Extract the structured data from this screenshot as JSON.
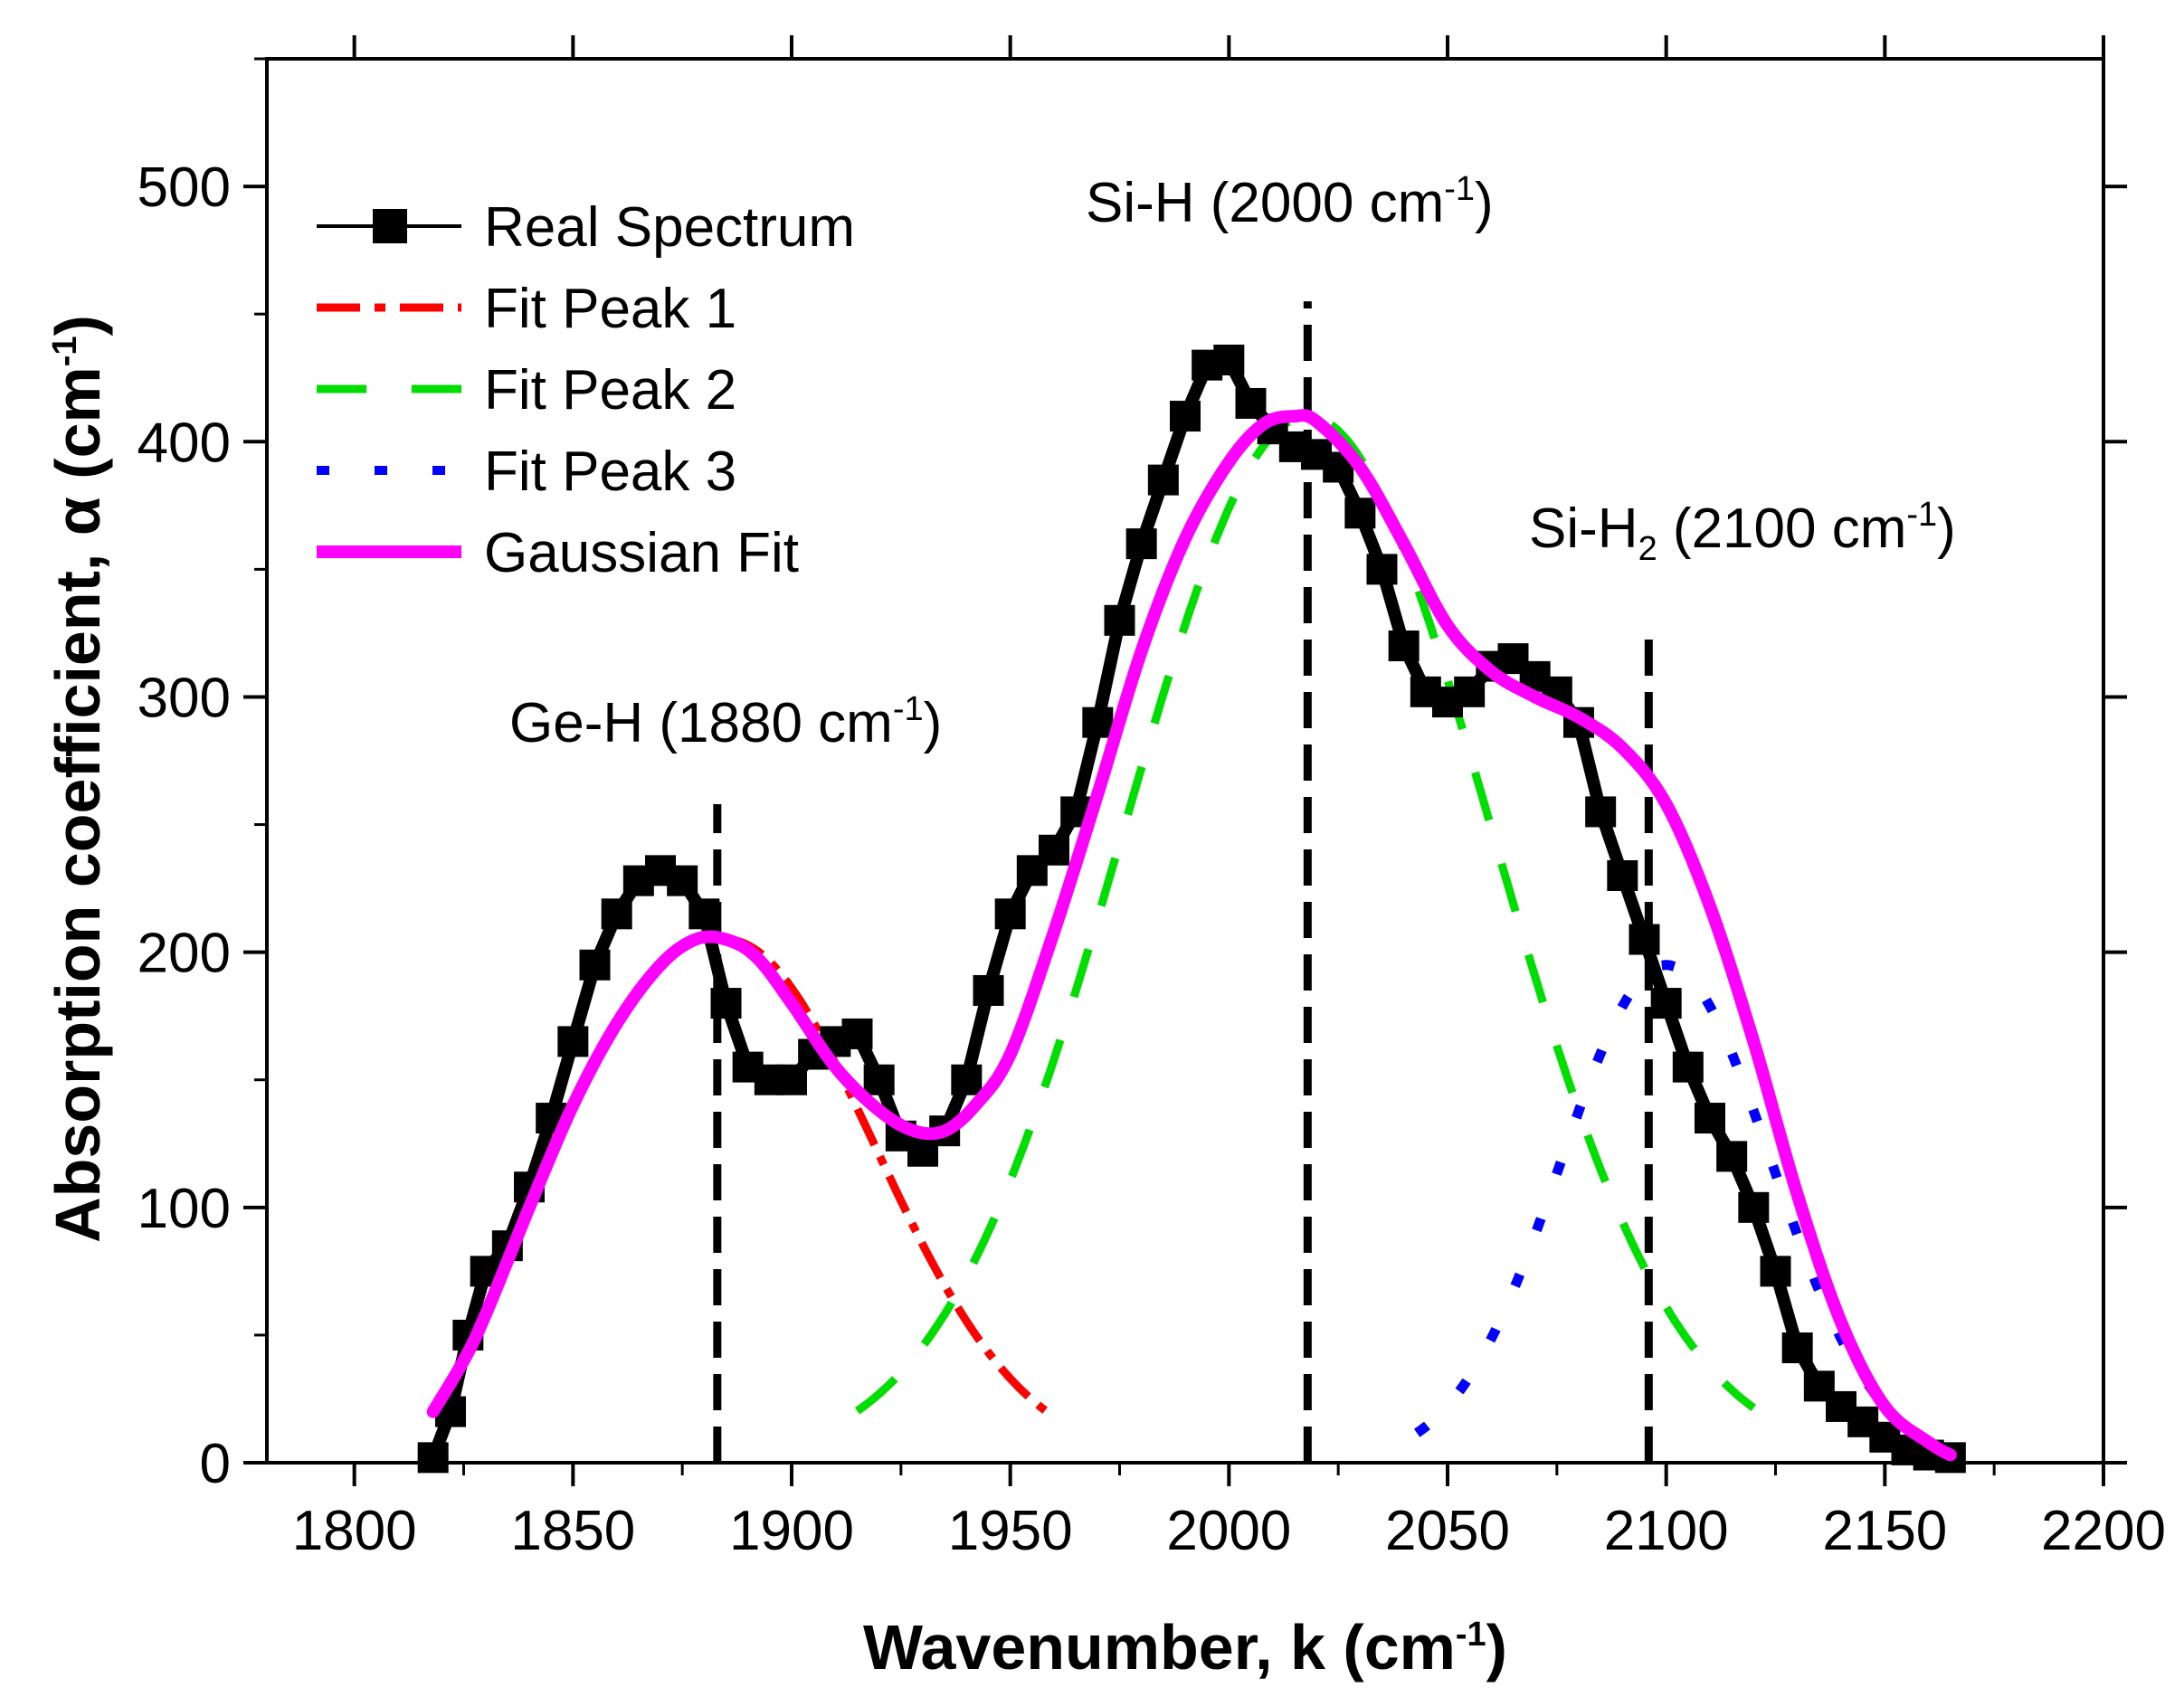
{
  "chart_data": {
    "type": "line",
    "xlabel": "Wavenumber, k (cm",
    "xlabel_sup": "-1",
    "xlabel_close": ")",
    "ylabel": "Absorption coefficient, α (cm",
    "ylabel_sup": "-1",
    "ylabel_close": ")",
    "xlim": [
      1780,
      2200
    ],
    "ylim": [
      0,
      550
    ],
    "x_ticks": [
      1800,
      1850,
      1900,
      1950,
      2000,
      2050,
      2100,
      2150,
      2200
    ],
    "x_tick_labels": [
      "1800",
      "1850",
      "1900",
      "1950",
      "2000",
      "2050",
      "2100",
      "2150",
      "2200"
    ],
    "y_ticks": [
      0,
      100,
      200,
      300,
      400,
      500
    ],
    "y_tick_labels": [
      "0",
      "100",
      "200",
      "300",
      "400",
      "500"
    ],
    "legend_position": "top-left",
    "series": [
      {
        "name": "Real Spectrum",
        "style": "line-square-markers",
        "color": "#000000",
        "x": [
          1818,
          1822,
          1826,
          1830,
          1835,
          1840,
          1845,
          1850,
          1855,
          1860,
          1865,
          1870,
          1875,
          1880,
          1885,
          1890,
          1895,
          1900,
          1905,
          1910,
          1915,
          1920,
          1925,
          1930,
          1935,
          1940,
          1945,
          1950,
          1955,
          1960,
          1965,
          1970,
          1975,
          1980,
          1985,
          1990,
          1995,
          2000,
          2005,
          2010,
          2015,
          2020,
          2025,
          2030,
          2035,
          2040,
          2045,
          2050,
          2055,
          2060,
          2065,
          2070,
          2075,
          2080,
          2085,
          2090,
          2095,
          2100,
          2105,
          2110,
          2115,
          2120,
          2125,
          2130,
          2135,
          2140,
          2145,
          2150,
          2155,
          2160,
          2165
        ],
        "y": [
          2,
          20,
          50,
          75,
          85,
          108,
          135,
          165,
          195,
          215,
          228,
          232,
          228,
          215,
          180,
          155,
          150,
          150,
          160,
          165,
          168,
          150,
          128,
          122,
          130,
          150,
          185,
          215,
          232,
          240,
          255,
          290,
          330,
          360,
          385,
          410,
          430,
          432,
          415,
          405,
          398,
          395,
          390,
          372,
          350,
          320,
          302,
          298,
          302,
          312,
          315,
          308,
          302,
          290,
          255,
          230,
          205,
          180,
          155,
          135,
          120,
          100,
          75,
          45,
          30,
          22,
          16,
          10,
          5,
          3,
          2
        ]
      },
      {
        "name": "Fit Peak 1",
        "style": "dash-dot",
        "color": "#ff0000",
        "center": 1885,
        "amplitude": 205,
        "sigma": 34,
        "x_range": [
          1885,
          1960
        ]
      },
      {
        "name": "Fit Peak 2",
        "style": "dash",
        "color": "#00dd00",
        "center": 2018,
        "amplitude": 410,
        "sigma": 42,
        "x_range": [
          1915,
          2120
        ]
      },
      {
        "name": "Fit Peak 3",
        "style": "dot",
        "color": "#0000ff",
        "center": 2100,
        "amplitude": 195,
        "sigma": 24,
        "x_range": [
          2043,
          2165
        ]
      },
      {
        "name": "Gaussian Fit",
        "style": "solid",
        "color": "#ff00ff",
        "x": [
          1818,
          1825,
          1830,
          1840,
          1850,
          1860,
          1870,
          1878,
          1885,
          1892,
          1900,
          1910,
          1920,
          1928,
          1935,
          1942,
          1950,
          1960,
          1970,
          1980,
          1990,
          2000,
          2008,
          2015,
          2020,
          2030,
          2040,
          2050,
          2060,
          2070,
          2080,
          2090,
          2100,
          2110,
          2120,
          2130,
          2140,
          2150,
          2160,
          2165
        ],
        "y": [
          20,
          40,
          58,
          100,
          140,
          172,
          195,
          205,
          205,
          198,
          180,
          155,
          138,
          130,
          130,
          140,
          160,
          208,
          262,
          318,
          362,
          392,
          407,
          410,
          408,
          390,
          360,
          328,
          310,
          300,
          292,
          280,
          258,
          218,
          165,
          105,
          55,
          22,
          8,
          3
        ]
      }
    ],
    "annotations": [
      {
        "text": "Ge-H (1880 cm",
        "sup": "-1",
        "close": ")",
        "x": 1883
      },
      {
        "text": "Si-H (2000 cm",
        "sup": "-1",
        "close": ")",
        "x": 2018
      },
      {
        "text": "Si-H",
        "sub": "2",
        "text2": " (2100 cm",
        "sup": "-1",
        "close": ")",
        "x": 2096
      }
    ],
    "vlines": [
      {
        "x": 1883,
        "y_top": 258
      },
      {
        "x": 2018,
        "y_top": 455
      },
      {
        "x": 2096,
        "y_top": 325
      }
    ]
  }
}
